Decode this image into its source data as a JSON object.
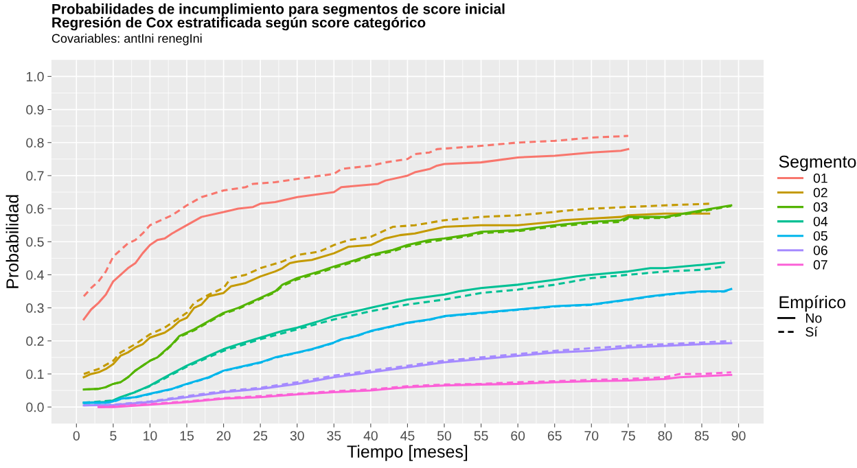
{
  "chart_data": {
    "type": "line",
    "title": "Probabilidades de incumplimiento para segmentos de score inicial\nRegresión de Cox estratificada según score categórico",
    "subtitle": "Covariables: antIni renegIni",
    "xlabel": "Tiempo [meses]",
    "ylabel": "Probabilidad",
    "xlim": [
      -3.4,
      93.4
    ],
    "ylim": [
      -0.05,
      1.05
    ],
    "xticks": [
      0,
      5,
      10,
      15,
      20,
      25,
      30,
      35,
      40,
      45,
      50,
      55,
      60,
      65,
      70,
      75,
      80,
      85,
      90
    ],
    "yticks": [
      {
        "value": 0,
        "label": "0.0"
      },
      0.1,
      0.2,
      0.3,
      0.4,
      0.5,
      0.6,
      0.7,
      0.8,
      0.9,
      {
        "value": 1,
        "label": "1.0"
      }
    ],
    "grid": true,
    "legend": "right",
    "marker": "none",
    "legend_title": [
      "Segmento",
      "Empírico"
    ],
    "annotations": [
      "No",
      "Sí"
    ],
    "series": [
      {
        "name": "01",
        "color": "#f8766d",
        "line_style": "solid",
        "x": [
          1,
          2,
          3,
          4,
          5,
          7,
          8,
          9,
          10,
          11,
          12,
          13,
          15,
          17,
          20,
          22,
          24,
          25,
          27,
          30,
          35,
          36,
          41,
          42,
          45,
          46,
          48,
          49,
          50,
          55,
          60,
          65,
          70,
          74,
          75
        ],
        "values": [
          0.265,
          0.295,
          0.315,
          0.34,
          0.38,
          0.42,
          0.435,
          0.465,
          0.49,
          0.505,
          0.51,
          0.525,
          0.55,
          0.575,
          0.59,
          0.6,
          0.605,
          0.615,
          0.62,
          0.635,
          0.65,
          0.665,
          0.675,
          0.685,
          0.7,
          0.71,
          0.72,
          0.73,
          0.735,
          0.74,
          0.755,
          0.76,
          0.77,
          0.775,
          0.78
        ]
      },
      {
        "color": "#f8766d",
        "line_style": "dashed",
        "x": [
          1,
          2,
          3,
          4,
          5,
          6,
          7,
          8,
          9,
          10,
          12,
          13,
          15,
          17,
          20,
          23,
          24,
          27,
          30,
          35,
          36,
          40,
          42,
          45,
          46,
          48,
          49,
          55,
          60,
          65,
          70,
          75
        ],
        "values": [
          0.335,
          0.36,
          0.38,
          0.41,
          0.455,
          0.475,
          0.495,
          0.505,
          0.525,
          0.55,
          0.57,
          0.58,
          0.61,
          0.635,
          0.655,
          0.665,
          0.675,
          0.68,
          0.69,
          0.705,
          0.72,
          0.73,
          0.74,
          0.75,
          0.765,
          0.77,
          0.78,
          0.79,
          0.8,
          0.805,
          0.815,
          0.82
        ]
      },
      {
        "name": "02",
        "color": "#c49a00",
        "line_style": "solid",
        "x": [
          1,
          2,
          3,
          4,
          5,
          6,
          7,
          8,
          9,
          10,
          12,
          13,
          14,
          15,
          16,
          17,
          18,
          20,
          21,
          23,
          25,
          27,
          28,
          29,
          30,
          32,
          35,
          36,
          37,
          40,
          42,
          44,
          46,
          50,
          55,
          60,
          65,
          66,
          70,
          74,
          75,
          80,
          86
        ],
        "values": [
          0.09,
          0.1,
          0.105,
          0.115,
          0.13,
          0.155,
          0.165,
          0.18,
          0.19,
          0.21,
          0.225,
          0.24,
          0.26,
          0.27,
          0.3,
          0.31,
          0.335,
          0.345,
          0.365,
          0.375,
          0.395,
          0.41,
          0.42,
          0.435,
          0.44,
          0.445,
          0.465,
          0.475,
          0.485,
          0.49,
          0.51,
          0.52,
          0.525,
          0.545,
          0.55,
          0.55,
          0.56,
          0.565,
          0.57,
          0.575,
          0.58,
          0.585,
          0.585
        ]
      },
      {
        "color": "#c49a00",
        "line_style": "dashed",
        "x": [
          1,
          3,
          5,
          6,
          8,
          10,
          12,
          13,
          15,
          16,
          18,
          20,
          21,
          23,
          25,
          28,
          30,
          33,
          35,
          37,
          40,
          42,
          43,
          46,
          50,
          55,
          60,
          65,
          67,
          70,
          75,
          80,
          86
        ],
        "values": [
          0.1,
          0.115,
          0.14,
          0.165,
          0.19,
          0.22,
          0.24,
          0.255,
          0.285,
          0.315,
          0.34,
          0.36,
          0.39,
          0.4,
          0.42,
          0.44,
          0.46,
          0.47,
          0.49,
          0.505,
          0.515,
          0.535,
          0.545,
          0.55,
          0.565,
          0.575,
          0.58,
          0.59,
          0.595,
          0.6,
          0.605,
          0.61,
          0.615
        ]
      },
      {
        "name": "03",
        "color": "#53b400",
        "line_style": "solid",
        "x": [
          1,
          3,
          4,
          5,
          6,
          7,
          8,
          10,
          11,
          12,
          13,
          14,
          16,
          18,
          20,
          22,
          25,
          27,
          28,
          30,
          33,
          35,
          38,
          40,
          43,
          45,
          48,
          50,
          53,
          55,
          60,
          65,
          70,
          74,
          75,
          80,
          85,
          89
        ],
        "values": [
          0.053,
          0.055,
          0.06,
          0.07,
          0.075,
          0.09,
          0.11,
          0.14,
          0.15,
          0.17,
          0.19,
          0.215,
          0.235,
          0.26,
          0.285,
          0.3,
          0.33,
          0.35,
          0.37,
          0.39,
          0.41,
          0.425,
          0.445,
          0.46,
          0.475,
          0.49,
          0.505,
          0.51,
          0.52,
          0.53,
          0.535,
          0.55,
          0.56,
          0.565,
          0.575,
          0.575,
          0.595,
          0.61
        ]
      },
      {
        "color": "#53b400",
        "line_style": "dashed",
        "x": [
          1,
          3,
          4,
          5,
          6,
          7,
          8,
          10,
          11,
          12,
          13,
          14,
          16,
          18,
          20,
          22,
          25,
          27,
          28,
          30,
          33,
          35,
          38,
          40,
          43,
          45,
          48,
          50,
          53,
          55,
          60,
          65,
          70,
          74,
          75,
          80,
          85,
          89
        ],
        "values": [
          0.053,
          0.055,
          0.06,
          0.07,
          0.075,
          0.09,
          0.11,
          0.14,
          0.15,
          0.168,
          0.188,
          0.212,
          0.232,
          0.257,
          0.282,
          0.297,
          0.327,
          0.347,
          0.366,
          0.386,
          0.406,
          0.421,
          0.441,
          0.456,
          0.471,
          0.486,
          0.5,
          0.506,
          0.516,
          0.526,
          0.532,
          0.546,
          0.556,
          0.56,
          0.571,
          0.572,
          0.592,
          0.608
        ]
      },
      {
        "name": "04",
        "color": "#00c094",
        "line_style": "solid",
        "x": [
          1,
          4,
          5,
          6,
          8,
          10,
          12,
          15,
          18,
          20,
          22,
          25,
          28,
          30,
          33,
          35,
          38,
          40,
          42,
          45,
          50,
          52,
          55,
          60,
          65,
          68,
          70,
          75,
          78,
          80,
          85,
          88
        ],
        "values": [
          0.013,
          0.015,
          0.02,
          0.03,
          0.045,
          0.065,
          0.09,
          0.125,
          0.155,
          0.175,
          0.19,
          0.21,
          0.23,
          0.24,
          0.26,
          0.275,
          0.29,
          0.3,
          0.31,
          0.325,
          0.34,
          0.35,
          0.36,
          0.37,
          0.385,
          0.395,
          0.4,
          0.41,
          0.42,
          0.42,
          0.43,
          0.437
        ]
      },
      {
        "color": "#00c094",
        "line_style": "dashed",
        "x": [
          1,
          5,
          10,
          15,
          20,
          25,
          30,
          35,
          40,
          45,
          50,
          55,
          60,
          65,
          70,
          75,
          80,
          85,
          88
        ],
        "values": [
          0.013,
          0.02,
          0.063,
          0.122,
          0.17,
          0.205,
          0.235,
          0.265,
          0.29,
          0.31,
          0.325,
          0.345,
          0.355,
          0.37,
          0.39,
          0.4,
          0.41,
          0.415,
          0.425
        ]
      },
      {
        "name": "05",
        "color": "#00b6eb",
        "line_style": "solid",
        "x": [
          1,
          4,
          5,
          6,
          8,
          10,
          12,
          13,
          15,
          18,
          20,
          22,
          25,
          27,
          30,
          32,
          35,
          36,
          38,
          40,
          42,
          45,
          48,
          50,
          55,
          60,
          65,
          70,
          75,
          78,
          80,
          82,
          85,
          88,
          89
        ],
        "values": [
          0.013,
          0.013,
          0.017,
          0.025,
          0.03,
          0.04,
          0.05,
          0.055,
          0.07,
          0.09,
          0.11,
          0.12,
          0.135,
          0.15,
          0.165,
          0.175,
          0.195,
          0.205,
          0.215,
          0.23,
          0.24,
          0.255,
          0.265,
          0.275,
          0.285,
          0.295,
          0.305,
          0.31,
          0.325,
          0.335,
          0.34,
          0.345,
          0.35,
          0.35,
          0.357
        ]
      },
      {
        "color": "#00b6eb",
        "line_style": "dashed",
        "x": [
          1,
          4,
          5,
          6,
          8,
          10,
          12,
          13,
          15,
          18,
          20,
          22,
          25,
          27,
          30,
          32,
          35,
          36,
          38,
          40,
          42,
          45,
          48,
          50,
          55,
          60,
          65,
          70,
          75,
          78,
          80,
          82,
          85,
          88,
          89
        ],
        "values": [
          0.013,
          0.013,
          0.016,
          0.024,
          0.029,
          0.039,
          0.049,
          0.054,
          0.069,
          0.089,
          0.109,
          0.119,
          0.134,
          0.149,
          0.164,
          0.174,
          0.194,
          0.204,
          0.214,
          0.229,
          0.239,
          0.254,
          0.264,
          0.274,
          0.284,
          0.294,
          0.304,
          0.309,
          0.324,
          0.334,
          0.339,
          0.344,
          0.349,
          0.349,
          0.356
        ]
      },
      {
        "name": "06",
        "color": "#a58aff",
        "line_style": "solid",
        "x": [
          1,
          5,
          10,
          15,
          20,
          25,
          30,
          35,
          40,
          45,
          50,
          55,
          60,
          65,
          70,
          75,
          80,
          85,
          89
        ],
        "values": [
          0.005,
          0.006,
          0.015,
          0.03,
          0.045,
          0.055,
          0.07,
          0.09,
          0.105,
          0.12,
          0.135,
          0.145,
          0.155,
          0.165,
          0.17,
          0.18,
          0.185,
          0.19,
          0.193
        ]
      },
      {
        "color": "#a58aff",
        "line_style": "dashed",
        "x": [
          1,
          5,
          10,
          15,
          20,
          25,
          30,
          35,
          40,
          45,
          50,
          55,
          60,
          65,
          70,
          75,
          80,
          85,
          89
        ],
        "values": [
          0.005,
          0.007,
          0.017,
          0.033,
          0.048,
          0.058,
          0.075,
          0.095,
          0.11,
          0.125,
          0.14,
          0.15,
          0.16,
          0.17,
          0.178,
          0.185,
          0.19,
          0.195,
          0.2
        ]
      },
      {
        "name": "07",
        "color": "#fb61d7",
        "line_style": "solid",
        "x": [
          3,
          5,
          10,
          15,
          20,
          25,
          30,
          35,
          40,
          45,
          50,
          55,
          60,
          65,
          70,
          75,
          80,
          82,
          85,
          89
        ],
        "values": [
          0.0,
          0.0,
          0.007,
          0.015,
          0.025,
          0.03,
          0.038,
          0.045,
          0.05,
          0.06,
          0.065,
          0.068,
          0.07,
          0.075,
          0.078,
          0.08,
          0.085,
          0.09,
          0.093,
          0.097
        ]
      },
      {
        "color": "#fb61d7",
        "line_style": "dashed",
        "x": [
          3,
          5,
          10,
          15,
          20,
          25,
          30,
          35,
          40,
          45,
          50,
          55,
          60,
          65,
          70,
          75,
          80,
          82,
          85,
          89
        ],
        "values": [
          0.0,
          0.002,
          0.009,
          0.017,
          0.027,
          0.033,
          0.04,
          0.048,
          0.053,
          0.063,
          0.068,
          0.07,
          0.075,
          0.078,
          0.082,
          0.085,
          0.09,
          0.1,
          0.1,
          0.105
        ]
      }
    ]
  }
}
